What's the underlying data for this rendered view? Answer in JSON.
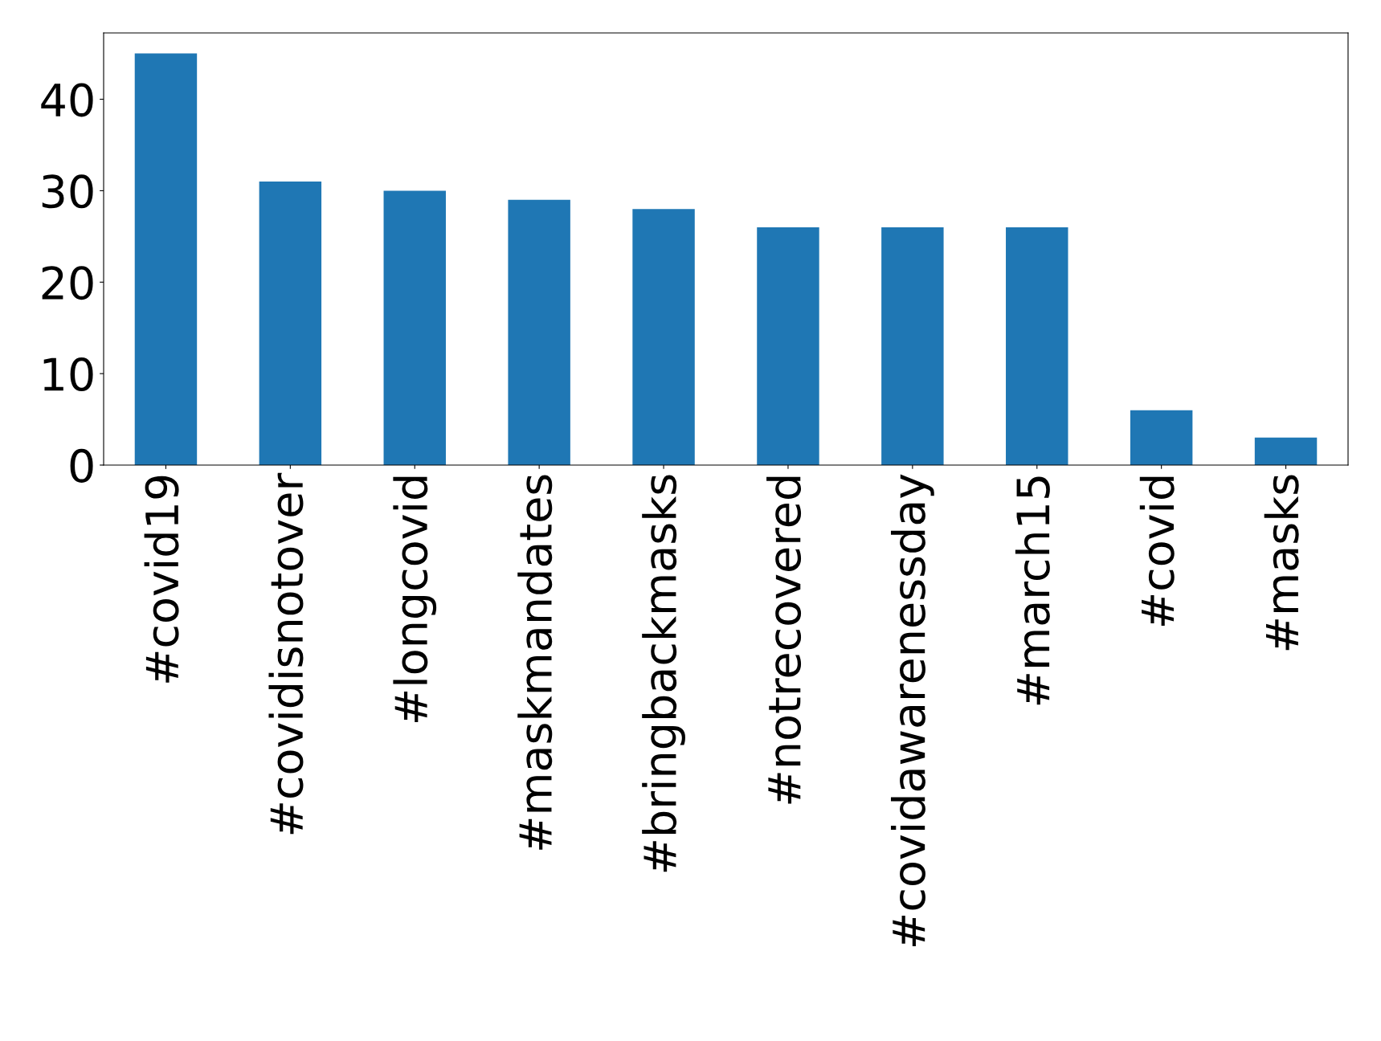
{
  "chart_data": {
    "type": "bar",
    "categories": [
      "#covid19",
      "#covidisnotover",
      "#longcovid",
      "#maskmandates",
      "#bringbackmasks",
      "#notrecovered",
      "#covidawarenessday",
      "#march15",
      "#covid",
      "#masks"
    ],
    "values": [
      45,
      31,
      30,
      29,
      28,
      26,
      26,
      26,
      6,
      3
    ],
    "color": "#1f77b4",
    "ylim": [
      0,
      47.25
    ],
    "yticks": [
      0,
      10,
      20,
      30,
      40
    ],
    "grid": false
  }
}
